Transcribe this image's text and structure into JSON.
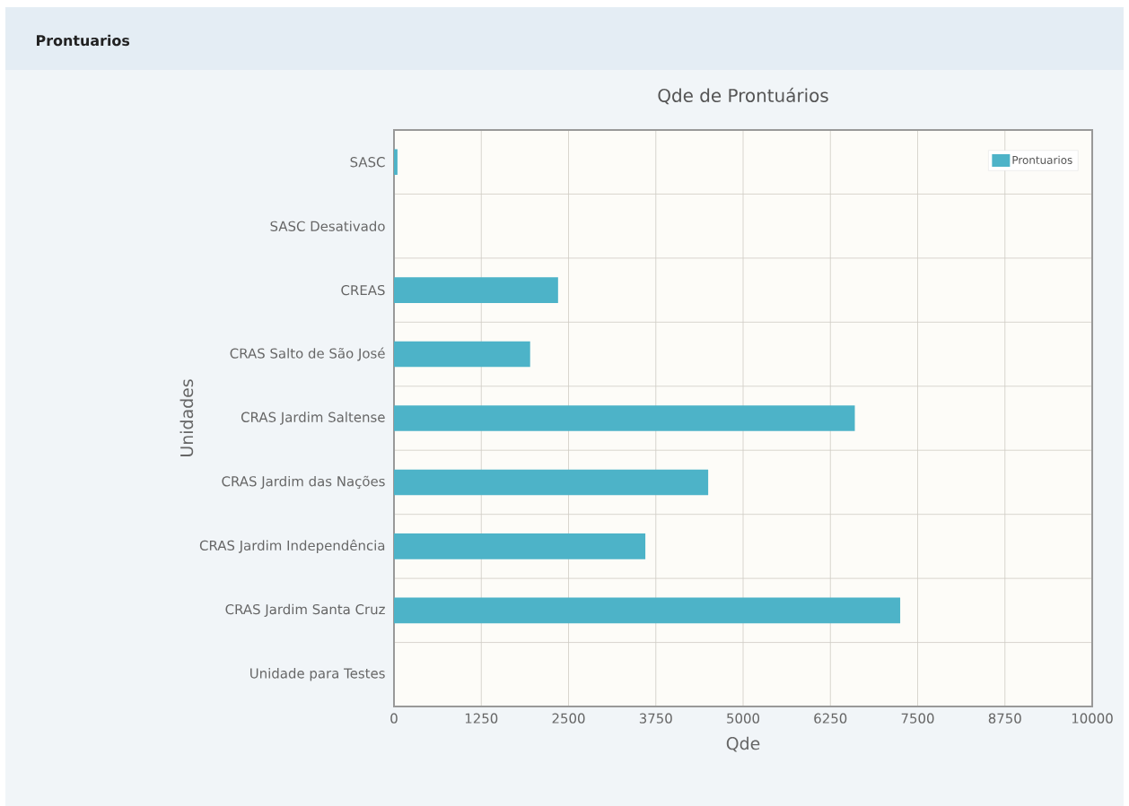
{
  "chart_data": {
    "type": "bar",
    "orientation": "horizontal",
    "title": "Prontuarios",
    "subtitle": "Qde de Prontuários",
    "xlabel": "Qde",
    "ylabel": "Unidades",
    "categories": [
      "SASC",
      "SASC Desativado",
      "CREAS",
      "CRAS Salto de São José",
      "CRAS Jardim Saltense",
      "CRAS Jardim das Nações",
      "CRAS Jardim Independência",
      "CRAS Jardim Santa Cruz",
      "Unidade para Testes"
    ],
    "series": [
      {
        "name": "Prontuarios",
        "color": "#4db3c8",
        "values": [
          50,
          0,
          2350,
          1950,
          6600,
          4500,
          3600,
          7250,
          0
        ]
      }
    ],
    "xlim": [
      0,
      10000
    ],
    "xticks": [
      0,
      1250,
      2500,
      3750,
      5000,
      6250,
      7500,
      8750,
      10000
    ],
    "grid": true,
    "legend": "top right"
  }
}
